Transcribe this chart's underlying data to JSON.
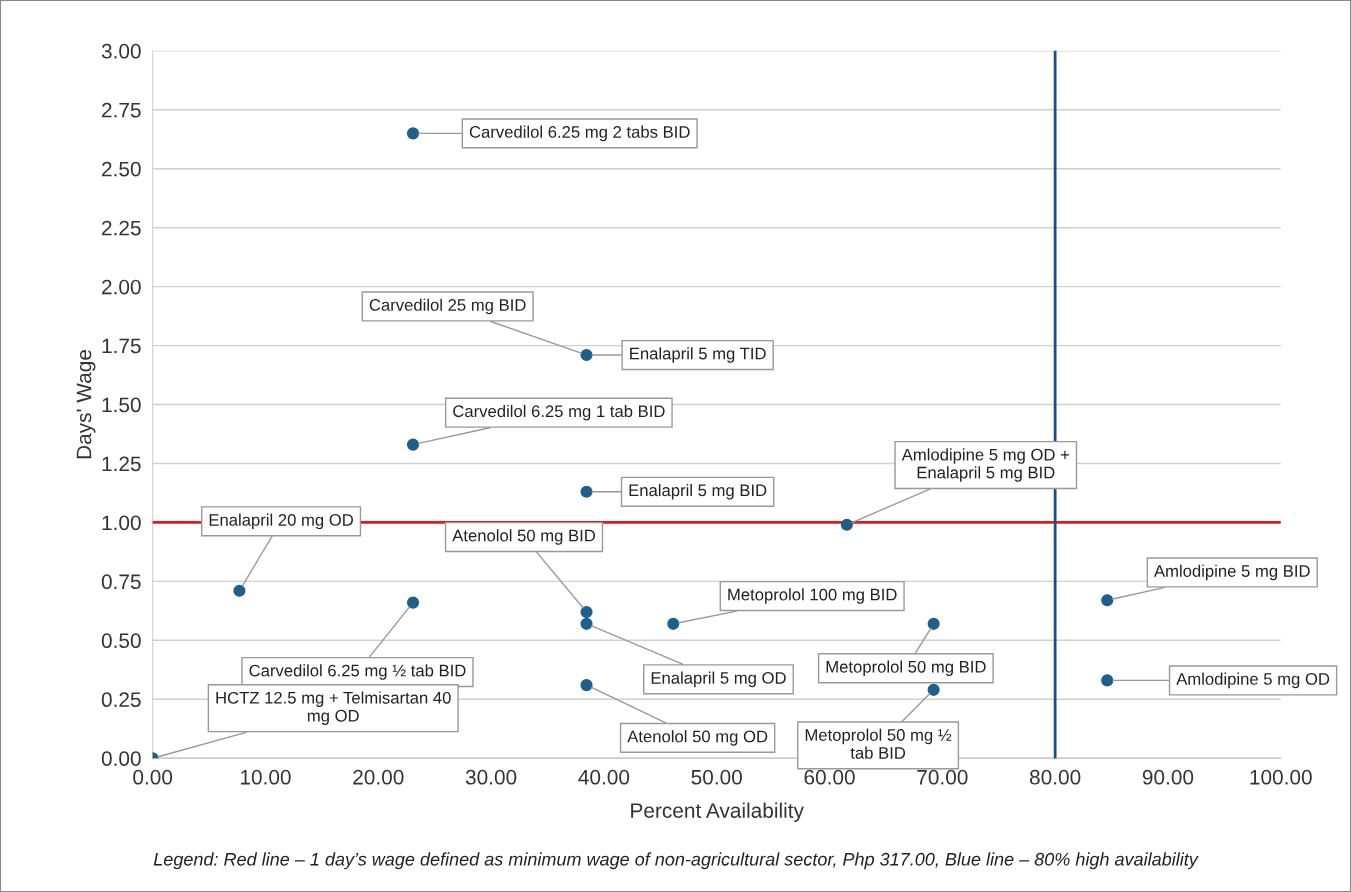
{
  "chart_data": {
    "type": "scatter",
    "xlabel": "Percent Availability",
    "ylabel": "Days' Wage",
    "x": [
      23.08,
      38.46,
      23.08,
      38.46,
      61.54,
      7.69,
      23.08,
      38.46,
      38.46,
      46.15,
      69.23,
      38.46,
      69.23,
      84.62,
      84.62,
      0
    ],
    "series": [
      {
        "color": "#1f5f8b",
        "values": [
          2.65,
          1.71,
          1.33,
          1.13,
          0.99,
          0.71,
          0.66,
          0.62,
          0.57,
          0.57,
          0.57,
          0.31,
          0.29,
          0.67,
          0.33,
          0
        ]
      }
    ],
    "marker": "circle",
    "grid": "y",
    "xlim": [
      0,
      100
    ],
    "ylim": [
      0,
      3
    ],
    "xticks": [
      {
        "value": 0,
        "label": "0.00"
      },
      {
        "value": 10,
        "label": "10.00"
      },
      {
        "value": 20,
        "label": "20.00"
      },
      {
        "value": 30,
        "label": "30.00"
      },
      {
        "value": 40,
        "label": "40.00"
      },
      {
        "value": 50,
        "label": "50.00"
      },
      {
        "value": 60,
        "label": "60.00"
      },
      {
        "value": 70,
        "label": "70.00"
      },
      {
        "value": 80,
        "label": "80.00"
      },
      {
        "value": 90,
        "label": "90.00"
      },
      {
        "value": 100,
        "label": "100.00"
      }
    ],
    "yticks": [
      {
        "value": 0,
        "label": "0.00"
      },
      {
        "value": 0.25,
        "label": "0.25"
      },
      {
        "value": 0.5,
        "label": "0.50"
      },
      {
        "value": 0.75,
        "label": "0.75"
      },
      {
        "value": 1,
        "label": "1.00"
      },
      {
        "value": 1.25,
        "label": "1.25"
      },
      {
        "value": 1.5,
        "label": "1.50"
      },
      {
        "value": 1.75,
        "label": "1.75"
      },
      {
        "value": 2,
        "label": "2.00"
      },
      {
        "value": 2.25,
        "label": "2.25"
      },
      {
        "value": 2.5,
        "label": "2.50"
      },
      {
        "value": 2.75,
        "label": "2.75"
      },
      {
        "value": 3,
        "label": "3.00"
      }
    ],
    "ref_lines": [
      {
        "axis": "y",
        "value": 1,
        "color": "#e0191e"
      },
      {
        "axis": "x",
        "value": 80,
        "color": "#1a4f86"
      }
    ],
    "annotations": [
      {
        "text": "Carvedilol 6.25 mg 2 tabs BID",
        "x": 23.08,
        "y": 2.65
      },
      {
        "text": "Carvedilol 25 mg BID",
        "x": 38.46,
        "y": 1.71
      },
      {
        "text": "Enalapril 5 mg TID",
        "x": 38.46,
        "y": 1.71
      },
      {
        "text": "Carvedilol 6.25 mg 1 tab BID",
        "x": 23.08,
        "y": 1.33
      },
      {
        "text": "Enalapril 5 mg BID",
        "x": 38.46,
        "y": 1.13
      },
      {
        "text": "Amlodipine 5 mg OD +\nEnalapril 5 mg BID",
        "x": 61.54,
        "y": 0.99
      },
      {
        "text": "Enalapril 20 mg OD",
        "x": 7.69,
        "y": 0.71
      },
      {
        "text": "Carvedilol 6.25 mg ½ tab BID",
        "x": 23.08,
        "y": 0.66
      },
      {
        "text": "Atenolol 50 mg BID",
        "x": 38.46,
        "y": 0.62
      },
      {
        "text": "Enalapril 5 mg OD",
        "x": 38.46,
        "y": 0.57
      },
      {
        "text": "Metoprolol 100 mg BID",
        "x": 46.15,
        "y": 0.57
      },
      {
        "text": "Metoprolol 50 mg BID",
        "x": 69.23,
        "y": 0.57
      },
      {
        "text": "Atenolol 50 mg OD",
        "x": 38.46,
        "y": 0.31
      },
      {
        "text": "Metoprolol 50 mg ½\ntab BID",
        "x": 69.23,
        "y": 0.29
      },
      {
        "text": "Amlodipine 5 mg BID",
        "x": 84.62,
        "y": 0.67
      },
      {
        "text": "Amlodipine 5 mg OD",
        "x": 84.62,
        "y": 0.33
      },
      {
        "text": "HCTZ 12.5 mg + Telmisartan 40\nmg OD",
        "x": 0,
        "y": 0
      },
      "Legend: Red line – 1 day’s wage defined as minimum wage of non-agricultural sector, Php 317.00, Blue line – 80% high availability"
    ]
  }
}
